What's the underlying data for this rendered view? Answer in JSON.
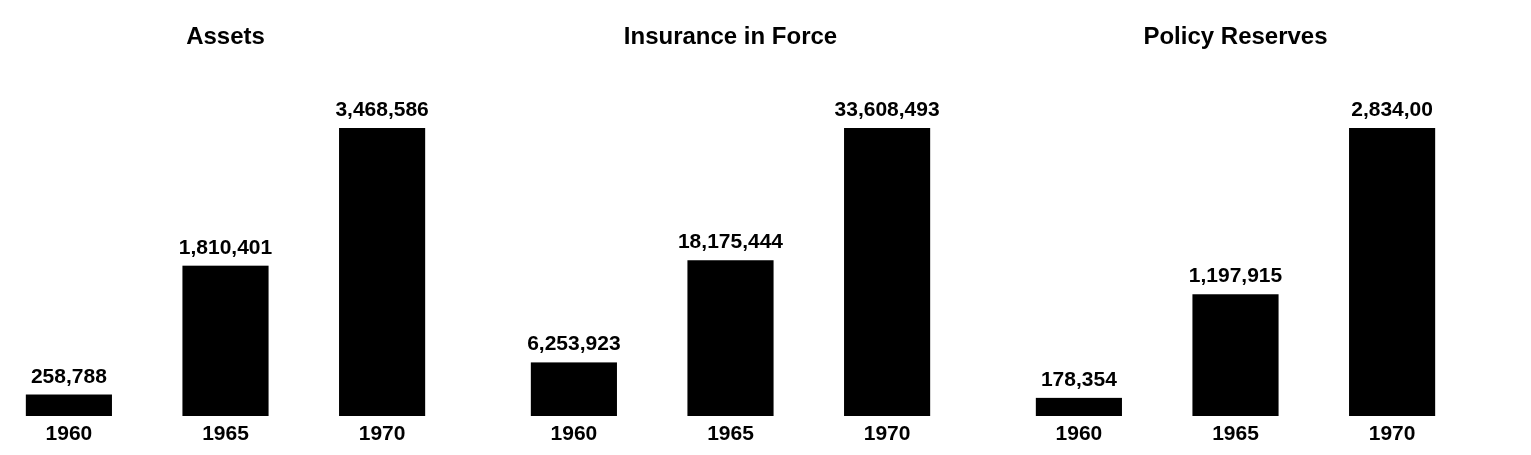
{
  "chart_data": [
    {
      "type": "bar",
      "title": "Assets",
      "categories": [
        "1960",
        "1965",
        "1970"
      ],
      "values": [
        258788,
        1810401,
        3468586
      ],
      "value_labels": [
        "258,788",
        "1,810,401",
        "3,468,586"
      ],
      "color": "#000000"
    },
    {
      "type": "bar",
      "title": "Insurance in Force",
      "categories": [
        "1960",
        "1965",
        "1970"
      ],
      "values": [
        6253923,
        18175444,
        33608493
      ],
      "value_labels": [
        "6,253,923",
        "18,175,444",
        "33,608,493"
      ],
      "color": "#000000"
    },
    {
      "type": "bar",
      "title": "Policy Reserves",
      "categories": [
        "1960",
        "1965",
        "1970"
      ],
      "values": [
        178354,
        1197915,
        2834000
      ],
      "value_labels": [
        "178,354",
        "1,197,915",
        "2,834,00"
      ],
      "color": "#000000"
    }
  ]
}
